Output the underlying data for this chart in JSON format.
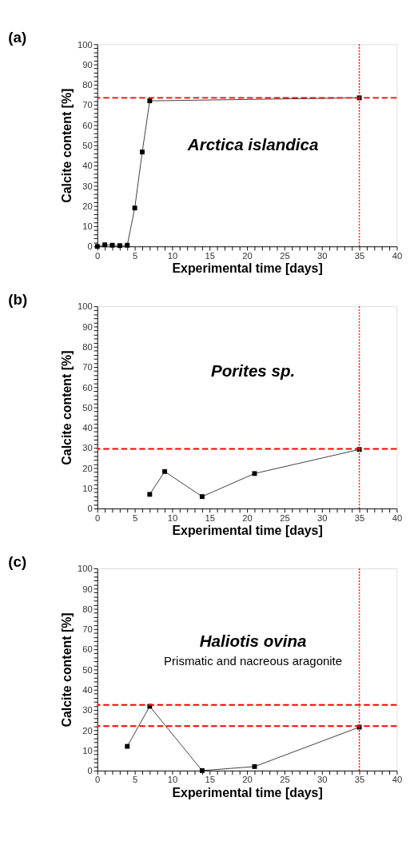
{
  "chart_data": [
    {
      "type": "line",
      "title": "(a)",
      "xlabel": "Experimental time [days]",
      "ylabel": "Calcite content [%]",
      "annotations": [
        "Arctica islandica"
      ],
      "x": [
        0,
        1,
        2,
        3,
        4,
        5,
        6,
        7,
        35
      ],
      "series": [
        {
          "color": "#000000",
          "values": [
            0,
            0.8,
            0.6,
            0.4,
            0.6,
            19,
            46.7,
            72,
            73.5
          ]
        }
      ],
      "marker": "square",
      "line_style": "solid",
      "xlim": [
        0,
        40
      ],
      "ylim": [
        0,
        100
      ],
      "xticks": [
        0,
        {
          "value": 1,
          "label": null
        },
        {
          "value": 2,
          "label": null
        },
        {
          "value": 3,
          "label": null
        },
        {
          "value": 4,
          "label": null
        },
        5,
        {
          "value": 6,
          "label": null
        },
        {
          "value": 7,
          "label": null
        },
        {
          "value": 8,
          "label": null
        },
        {
          "value": 9,
          "label": null
        },
        10,
        {
          "value": 11,
          "label": null
        },
        {
          "value": 12,
          "label": null
        },
        {
          "value": 13,
          "label": null
        },
        {
          "value": 14,
          "label": null
        },
        15,
        {
          "value": 16,
          "label": null
        },
        {
          "value": 17,
          "label": null
        },
        {
          "value": 18,
          "label": null
        },
        {
          "value": 19,
          "label": null
        },
        20,
        {
          "value": 21,
          "label": null
        },
        {
          "value": 22,
          "label": null
        },
        {
          "value": 23,
          "label": null
        },
        {
          "value": 24,
          "label": null
        },
        25,
        {
          "value": 26,
          "label": null
        },
        {
          "value": 27,
          "label": null
        },
        {
          "value": 28,
          "label": null
        },
        {
          "value": 29,
          "label": null
        },
        30,
        {
          "value": 31,
          "label": null
        },
        {
          "value": 32,
          "label": null
        },
        {
          "value": 33,
          "label": null
        },
        {
          "value": 34,
          "label": null
        },
        35,
        {
          "value": 36,
          "label": null
        },
        {
          "value": 37,
          "label": null
        },
        {
          "value": 38,
          "label": null
        },
        {
          "value": 39,
          "label": null
        },
        40
      ],
      "yticks": [
        0,
        {
          "value": 2,
          "label": null
        },
        {
          "value": 4,
          "label": null
        },
        {
          "value": 6,
          "label": null
        },
        {
          "value": 8,
          "label": null
        },
        10,
        {
          "value": 12,
          "label": null
        },
        {
          "value": 14,
          "label": null
        },
        {
          "value": 16,
          "label": null
        },
        {
          "value": 18,
          "label": null
        },
        20,
        {
          "value": 22,
          "label": null
        },
        {
          "value": 24,
          "label": null
        },
        {
          "value": 26,
          "label": null
        },
        {
          "value": 28,
          "label": null
        },
        30,
        {
          "value": 32,
          "label": null
        },
        {
          "value": 34,
          "label": null
        },
        {
          "value": 36,
          "label": null
        },
        {
          "value": 38,
          "label": null
        },
        40,
        {
          "value": 42,
          "label": null
        },
        {
          "value": 44,
          "label": null
        },
        {
          "value": 46,
          "label": null
        },
        {
          "value": 48,
          "label": null
        },
        50,
        {
          "value": 52,
          "label": null
        },
        {
          "value": 54,
          "label": null
        },
        {
          "value": 56,
          "label": null
        },
        {
          "value": 58,
          "label": null
        },
        60,
        {
          "value": 62,
          "label": null
        },
        {
          "value": 64,
          "label": null
        },
        {
          "value": 66,
          "label": null
        },
        {
          "value": 68,
          "label": null
        },
        70,
        {
          "value": 72,
          "label": null
        },
        {
          "value": 74,
          "label": null
        },
        {
          "value": 76,
          "label": null
        },
        {
          "value": 78,
          "label": null
        },
        80,
        {
          "value": 82,
          "label": null
        },
        {
          "value": 84,
          "label": null
        },
        {
          "value": 86,
          "label": null
        },
        {
          "value": 88,
          "label": null
        },
        90,
        {
          "value": 92,
          "label": null
        },
        {
          "value": 94,
          "label": null
        },
        {
          "value": 96,
          "label": null
        },
        {
          "value": 98,
          "label": null
        },
        100
      ],
      "ref_lines": [
        {
          "axis": "y",
          "value": 73.5,
          "color": "#ff0000",
          "line_style": "dashed"
        },
        {
          "axis": "x",
          "value": 35,
          "color": "#ff0000",
          "line_style": "dotted"
        }
      ],
      "grid": false
    },
    {
      "type": "line",
      "title": "(b)",
      "xlabel": "Experimental time [days]",
      "ylabel": "Calcite content [%]",
      "annotations": [
        "Porites sp."
      ],
      "x": [
        7,
        9,
        14,
        21,
        35
      ],
      "series": [
        {
          "color": "#000000",
          "values": [
            7,
            18.3,
            5.9,
            17.3,
            29.2
          ]
        }
      ],
      "marker": "square",
      "line_style": "solid",
      "xlim": [
        0,
        40
      ],
      "ylim": [
        0,
        100
      ],
      "xticks": [
        0,
        {
          "value": 1,
          "label": null
        },
        {
          "value": 2,
          "label": null
        },
        {
          "value": 3,
          "label": null
        },
        {
          "value": 4,
          "label": null
        },
        5,
        {
          "value": 6,
          "label": null
        },
        {
          "value": 7,
          "label": null
        },
        {
          "value": 8,
          "label": null
        },
        {
          "value": 9,
          "label": null
        },
        10,
        {
          "value": 11,
          "label": null
        },
        {
          "value": 12,
          "label": null
        },
        {
          "value": 13,
          "label": null
        },
        {
          "value": 14,
          "label": null
        },
        15,
        {
          "value": 16,
          "label": null
        },
        {
          "value": 17,
          "label": null
        },
        {
          "value": 18,
          "label": null
        },
        {
          "value": 19,
          "label": null
        },
        20,
        {
          "value": 21,
          "label": null
        },
        {
          "value": 22,
          "label": null
        },
        {
          "value": 23,
          "label": null
        },
        {
          "value": 24,
          "label": null
        },
        25,
        {
          "value": 26,
          "label": null
        },
        {
          "value": 27,
          "label": null
        },
        {
          "value": 28,
          "label": null
        },
        {
          "value": 29,
          "label": null
        },
        30,
        {
          "value": 31,
          "label": null
        },
        {
          "value": 32,
          "label": null
        },
        {
          "value": 33,
          "label": null
        },
        {
          "value": 34,
          "label": null
        },
        35,
        {
          "value": 36,
          "label": null
        },
        {
          "value": 37,
          "label": null
        },
        {
          "value": 38,
          "label": null
        },
        {
          "value": 39,
          "label": null
        },
        40
      ],
      "yticks": [
        0,
        {
          "value": 2,
          "label": null
        },
        {
          "value": 4,
          "label": null
        },
        {
          "value": 6,
          "label": null
        },
        {
          "value": 8,
          "label": null
        },
        10,
        {
          "value": 12,
          "label": null
        },
        {
          "value": 14,
          "label": null
        },
        {
          "value": 16,
          "label": null
        },
        {
          "value": 18,
          "label": null
        },
        20,
        {
          "value": 22,
          "label": null
        },
        {
          "value": 24,
          "label": null
        },
        {
          "value": 26,
          "label": null
        },
        {
          "value": 28,
          "label": null
        },
        30,
        {
          "value": 32,
          "label": null
        },
        {
          "value": 34,
          "label": null
        },
        {
          "value": 36,
          "label": null
        },
        {
          "value": 38,
          "label": null
        },
        40,
        {
          "value": 42,
          "label": null
        },
        {
          "value": 44,
          "label": null
        },
        {
          "value": 46,
          "label": null
        },
        {
          "value": 48,
          "label": null
        },
        50,
        {
          "value": 52,
          "label": null
        },
        {
          "value": 54,
          "label": null
        },
        {
          "value": 56,
          "label": null
        },
        {
          "value": 58,
          "label": null
        },
        60,
        {
          "value": 62,
          "label": null
        },
        {
          "value": 64,
          "label": null
        },
        {
          "value": 66,
          "label": null
        },
        {
          "value": 68,
          "label": null
        },
        70,
        {
          "value": 72,
          "label": null
        },
        {
          "value": 74,
          "label": null
        },
        {
          "value": 76,
          "label": null
        },
        {
          "value": 78,
          "label": null
        },
        80,
        {
          "value": 82,
          "label": null
        },
        {
          "value": 84,
          "label": null
        },
        {
          "value": 86,
          "label": null
        },
        {
          "value": 88,
          "label": null
        },
        90,
        {
          "value": 92,
          "label": null
        },
        {
          "value": 94,
          "label": null
        },
        {
          "value": 96,
          "label": null
        },
        {
          "value": 98,
          "label": null
        },
        100
      ],
      "ref_lines": [
        {
          "axis": "y",
          "value": 29.5,
          "color": "#ff0000",
          "line_style": "dashed"
        },
        {
          "axis": "x",
          "value": 35,
          "color": "#ff0000",
          "line_style": "dotted"
        }
      ],
      "grid": false
    },
    {
      "type": "line",
      "title": "(c)",
      "xlabel": "Experimental time [days]",
      "ylabel": "Calcite content [%]",
      "annotations": [
        "Haliotis ovina",
        "Prismatic and nacreous aragonite"
      ],
      "x": [
        4,
        7,
        14,
        21,
        35
      ],
      "series": [
        {
          "color": "#000000",
          "values": [
            12,
            31.8,
            0,
            2,
            21.5
          ]
        }
      ],
      "marker": "square",
      "line_style": "solid",
      "xlim": [
        0,
        40
      ],
      "ylim": [
        0,
        100
      ],
      "xticks": [
        0,
        {
          "value": 1,
          "label": null
        },
        {
          "value": 2,
          "label": null
        },
        {
          "value": 3,
          "label": null
        },
        {
          "value": 4,
          "label": null
        },
        5,
        {
          "value": 6,
          "label": null
        },
        {
          "value": 7,
          "label": null
        },
        {
          "value": 8,
          "label": null
        },
        {
          "value": 9,
          "label": null
        },
        10,
        {
          "value": 11,
          "label": null
        },
        {
          "value": 12,
          "label": null
        },
        {
          "value": 13,
          "label": null
        },
        {
          "value": 14,
          "label": null
        },
        15,
        {
          "value": 16,
          "label": null
        },
        {
          "value": 17,
          "label": null
        },
        {
          "value": 18,
          "label": null
        },
        {
          "value": 19,
          "label": null
        },
        20,
        {
          "value": 21,
          "label": null
        },
        {
          "value": 22,
          "label": null
        },
        {
          "value": 23,
          "label": null
        },
        {
          "value": 24,
          "label": null
        },
        25,
        {
          "value": 26,
          "label": null
        },
        {
          "value": 27,
          "label": null
        },
        {
          "value": 28,
          "label": null
        },
        {
          "value": 29,
          "label": null
        },
        30,
        {
          "value": 31,
          "label": null
        },
        {
          "value": 32,
          "label": null
        },
        {
          "value": 33,
          "label": null
        },
        {
          "value": 34,
          "label": null
        },
        35,
        {
          "value": 36,
          "label": null
        },
        {
          "value": 37,
          "label": null
        },
        {
          "value": 38,
          "label": null
        },
        {
          "value": 39,
          "label": null
        },
        40
      ],
      "yticks": [
        0,
        {
          "value": 2,
          "label": null
        },
        {
          "value": 4,
          "label": null
        },
        {
          "value": 6,
          "label": null
        },
        {
          "value": 8,
          "label": null
        },
        10,
        {
          "value": 12,
          "label": null
        },
        {
          "value": 14,
          "label": null
        },
        {
          "value": 16,
          "label": null
        },
        {
          "value": 18,
          "label": null
        },
        20,
        {
          "value": 22,
          "label": null
        },
        {
          "value": 24,
          "label": null
        },
        {
          "value": 26,
          "label": null
        },
        {
          "value": 28,
          "label": null
        },
        30,
        {
          "value": 32,
          "label": null
        },
        {
          "value": 34,
          "label": null
        },
        {
          "value": 36,
          "label": null
        },
        {
          "value": 38,
          "label": null
        },
        40,
        {
          "value": 42,
          "label": null
        },
        {
          "value": 44,
          "label": null
        },
        {
          "value": 46,
          "label": null
        },
        {
          "value": 48,
          "label": null
        },
        50,
        {
          "value": 52,
          "label": null
        },
        {
          "value": 54,
          "label": null
        },
        {
          "value": 56,
          "label": null
        },
        {
          "value": 58,
          "label": null
        },
        60,
        {
          "value": 62,
          "label": null
        },
        {
          "value": 64,
          "label": null
        },
        {
          "value": 66,
          "label": null
        },
        {
          "value": 68,
          "label": null
        },
        70,
        {
          "value": 72,
          "label": null
        },
        {
          "value": 74,
          "label": null
        },
        {
          "value": 76,
          "label": null
        },
        {
          "value": 78,
          "label": null
        },
        80,
        {
          "value": 82,
          "label": null
        },
        {
          "value": 84,
          "label": null
        },
        {
          "value": 86,
          "label": null
        },
        {
          "value": 88,
          "label": null
        },
        90,
        {
          "value": 92,
          "label": null
        },
        {
          "value": 94,
          "label": null
        },
        {
          "value": 96,
          "label": null
        },
        {
          "value": 98,
          "label": null
        },
        100
      ],
      "ref_lines": [
        {
          "axis": "y",
          "value": 32.5,
          "color": "#ff0000",
          "line_style": "dashed"
        },
        {
          "axis": "y",
          "value": 22,
          "color": "#ff0000",
          "line_style": "dashed"
        },
        {
          "axis": "x",
          "value": 35,
          "color": "#ff0000",
          "line_style": "dotted"
        }
      ],
      "grid": false
    }
  ]
}
